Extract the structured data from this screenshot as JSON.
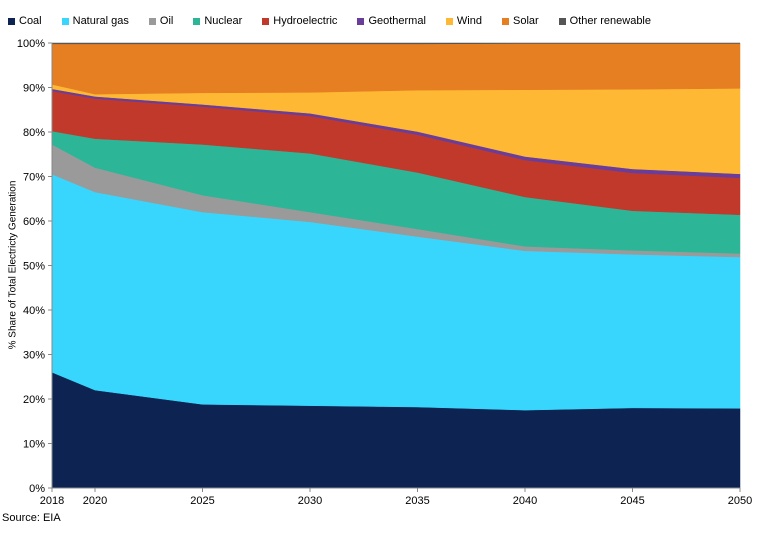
{
  "chart_data": {
    "type": "area",
    "stacked": true,
    "ylabel": "% Share of Total Electricty Generation",
    "xlabel": "",
    "source": "Source: EIA",
    "x": [
      2018,
      2020,
      2025,
      2030,
      2035,
      2040,
      2045,
      2050
    ],
    "x_tick_labels": [
      "2018",
      "2020",
      "2025",
      "2030",
      "2035",
      "2040",
      "2045",
      "2050"
    ],
    "y_tick_labels": [
      "0%",
      "10%",
      "20%",
      "30%",
      "40%",
      "50%",
      "60%",
      "70%",
      "80%",
      "90%",
      "100%"
    ],
    "ylim": [
      0,
      100
    ],
    "xlim": [
      2018,
      2050
    ],
    "legend_position": "top",
    "series": [
      {
        "name": "Coal",
        "color": "#0d2352",
        "values": [
          26.0,
          22.0,
          18.8,
          18.5,
          18.2,
          17.5,
          18.0,
          17.9
        ]
      },
      {
        "name": "Natural gas",
        "color": "#38d6fd",
        "values": [
          44.5,
          44.5,
          43.2,
          41.3,
          38.3,
          35.8,
          34.5,
          34.0
        ]
      },
      {
        "name": "Oil",
        "color": "#9a9a9a",
        "values": [
          6.7,
          5.5,
          3.8,
          2.2,
          1.7,
          1.0,
          0.9,
          0.8
        ]
      },
      {
        "name": "Nuclear",
        "color": "#2db597",
        "values": [
          3.0,
          6.5,
          11.4,
          13.2,
          12.7,
          11.1,
          8.9,
          8.7
        ]
      },
      {
        "name": "Hydroelectric",
        "color": "#c0392b",
        "values": [
          9.0,
          9.0,
          8.5,
          8.4,
          8.5,
          8.3,
          8.5,
          8.3
        ]
      },
      {
        "name": "Geothermal",
        "color": "#6a3d9a",
        "values": [
          0.5,
          0.5,
          0.5,
          0.6,
          0.7,
          0.8,
          0.9,
          0.9
        ]
      },
      {
        "name": "Wind",
        "color": "#ffb833",
        "values": [
          1.0,
          0.5,
          2.6,
          4.7,
          9.3,
          15.0,
          17.9,
          19.2
        ]
      },
      {
        "name": "Solar",
        "color": "#e67e22",
        "values": [
          9.1,
          11.3,
          11.0,
          10.9,
          10.4,
          10.4,
          10.3,
          10.1
        ]
      },
      {
        "name": "Other renewable",
        "color": "#555555",
        "values": [
          0.2,
          0.2,
          0.2,
          0.2,
          0.2,
          0.1,
          0.1,
          0.1
        ]
      }
    ]
  }
}
